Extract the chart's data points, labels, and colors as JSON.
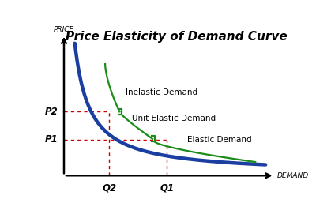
{
  "title": "Price Elasticity of Demand Curve",
  "title_fontsize": 11,
  "xlabel": "DEMAND",
  "ylabel": "PRICE",
  "axis_label_fontsize": 6.5,
  "blue_color": "#1a3fa0",
  "green_color": "#1a8c1a",
  "red_color": "#cc0000",
  "p1_label": "P1",
  "p2_label": "P2",
  "q1_label": "Q1",
  "q2_label": "Q2",
  "inelastic_label": "Inelastic Demand",
  "unit_elastic_label": "Unit Elastic Demand",
  "elastic_label": "Elastic Demand",
  "text_fontsize": 7.5
}
